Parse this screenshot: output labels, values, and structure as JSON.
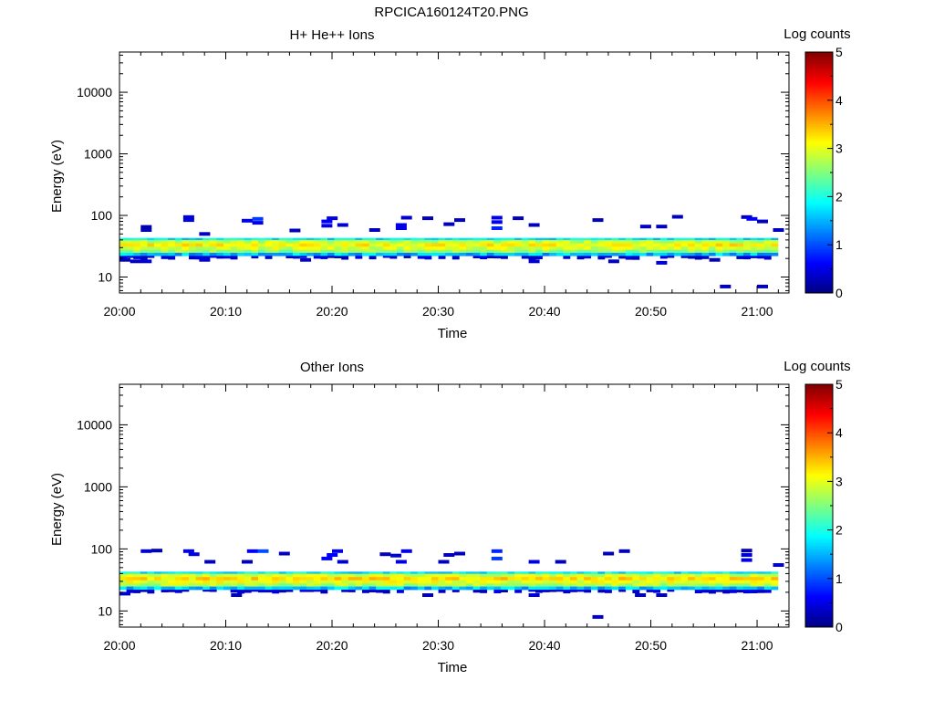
{
  "figure": {
    "title": "RPCICA160124T20.PNG"
  },
  "chart_data": [
    {
      "type": "heatmap",
      "title": "H+ He++ Ions",
      "xlabel": "Time",
      "ylabel": "Energy (eV)",
      "x_range": [
        "20:00",
        "21:03"
      ],
      "x_tick_labels": [
        "20:00",
        "20:10",
        "20:20",
        "20:30",
        "20:40",
        "20:50",
        "21:00"
      ],
      "y_scale": "log",
      "y_range": [
        5.5,
        45000
      ],
      "y_tick_labels": [
        "10",
        "100",
        "1000",
        "10000"
      ],
      "colorbar": {
        "label": "Log counts",
        "range": [
          0,
          5
        ],
        "tick_labels": [
          "0",
          "1",
          "2",
          "3",
          "4",
          "5"
        ]
      },
      "band": {
        "center_ev": 31,
        "spread_ev": [
          21,
          42
        ],
        "peak_log_counts": 3.2
      },
      "cells": [
        {
          "t": 0.0,
          "e": 19,
          "v": 0.3
        },
        {
          "t": 1.0,
          "e": 18,
          "v": 0.3
        },
        {
          "t": 2.0,
          "e": 18,
          "v": 0.4
        },
        {
          "t": 2.0,
          "e": 58,
          "v": 0.3
        },
        {
          "t": 2.0,
          "e": 65,
          "v": 0.2
        },
        {
          "t": 6.0,
          "e": 84,
          "v": 0.5
        },
        {
          "t": 6.0,
          "e": 94,
          "v": 0.4
        },
        {
          "t": 7.5,
          "e": 50,
          "v": 0.3
        },
        {
          "t": 7.5,
          "e": 19,
          "v": 0.4
        },
        {
          "t": 11.5,
          "e": 82,
          "v": 0.5
        },
        {
          "t": 12.5,
          "e": 88,
          "v": 0.9
        },
        {
          "t": 12.5,
          "e": 76,
          "v": 0.5
        },
        {
          "t": 16.0,
          "e": 57,
          "v": 0.3
        },
        {
          "t": 17.0,
          "e": 19,
          "v": 0.4
        },
        {
          "t": 19.0,
          "e": 68,
          "v": 0.5
        },
        {
          "t": 19.0,
          "e": 80,
          "v": 0.6
        },
        {
          "t": 19.5,
          "e": 90,
          "v": 0.5
        },
        {
          "t": 20.5,
          "e": 70,
          "v": 0.4
        },
        {
          "t": 23.5,
          "e": 58,
          "v": 0.3
        },
        {
          "t": 26.0,
          "e": 70,
          "v": 0.5
        },
        {
          "t": 26.0,
          "e": 62,
          "v": 0.5
        },
        {
          "t": 26.5,
          "e": 92,
          "v": 0.4
        },
        {
          "t": 28.5,
          "e": 90,
          "v": 0.3
        },
        {
          "t": 30.5,
          "e": 72,
          "v": 0.3
        },
        {
          "t": 31.5,
          "e": 84,
          "v": 0.3
        },
        {
          "t": 35.0,
          "e": 62,
          "v": 0.8
        },
        {
          "t": 35.0,
          "e": 92,
          "v": 0.5
        },
        {
          "t": 35.0,
          "e": 78,
          "v": 0.6
        },
        {
          "t": 37.0,
          "e": 90,
          "v": 0.3
        },
        {
          "t": 38.5,
          "e": 70,
          "v": 0.3
        },
        {
          "t": 38.5,
          "e": 18,
          "v": 0.4
        },
        {
          "t": 44.5,
          "e": 84,
          "v": 0.3
        },
        {
          "t": 46.0,
          "e": 18,
          "v": 0.3
        },
        {
          "t": 49.0,
          "e": 66,
          "v": 0.3
        },
        {
          "t": 50.5,
          "e": 66,
          "v": 0.3
        },
        {
          "t": 50.5,
          "e": 17,
          "v": 0.4
        },
        {
          "t": 52.0,
          "e": 95,
          "v": 0.3
        },
        {
          "t": 55.5,
          "e": 19,
          "v": 0.3
        },
        {
          "t": 56.5,
          "e": 7,
          "v": 0.3
        },
        {
          "t": 58.5,
          "e": 94,
          "v": 0.3
        },
        {
          "t": 59.0,
          "e": 88,
          "v": 0.6
        },
        {
          "t": 60.0,
          "e": 7,
          "v": 0.3
        },
        {
          "t": 60.0,
          "e": 80,
          "v": 0.3
        },
        {
          "t": 61.5,
          "e": 58,
          "v": 0.3
        }
      ]
    },
    {
      "type": "heatmap",
      "title": "Other Ions",
      "xlabel": "Time",
      "ylabel": "Energy (eV)",
      "x_range": [
        "20:00",
        "21:03"
      ],
      "x_tick_labels": [
        "20:00",
        "20:10",
        "20:20",
        "20:30",
        "20:40",
        "20:50",
        "21:00"
      ],
      "y_scale": "log",
      "y_range": [
        5.5,
        45000
      ],
      "y_tick_labels": [
        "10",
        "100",
        "1000",
        "10000"
      ],
      "colorbar": {
        "label": "Log counts",
        "range": [
          0,
          5
        ],
        "tick_labels": [
          "0",
          "1",
          "2",
          "3",
          "4",
          "5"
        ]
      },
      "band": {
        "center_ev": 31,
        "spread_ev": [
          21,
          42
        ],
        "peak_log_counts": 3.3
      },
      "cells": [
        {
          "t": 0.0,
          "e": 19,
          "v": 0.4
        },
        {
          "t": 2.0,
          "e": 92,
          "v": 0.4
        },
        {
          "t": 3.0,
          "e": 94,
          "v": 0.3
        },
        {
          "t": 6.0,
          "e": 92,
          "v": 0.5
        },
        {
          "t": 6.5,
          "e": 82,
          "v": 0.5
        },
        {
          "t": 8.0,
          "e": 62,
          "v": 0.3
        },
        {
          "t": 10.5,
          "e": 18,
          "v": 0.3
        },
        {
          "t": 11.5,
          "e": 62,
          "v": 0.3
        },
        {
          "t": 12.0,
          "e": 92,
          "v": 0.6
        },
        {
          "t": 13.0,
          "e": 92,
          "v": 1.0
        },
        {
          "t": 15.0,
          "e": 84,
          "v": 0.3
        },
        {
          "t": 19.0,
          "e": 70,
          "v": 0.6
        },
        {
          "t": 19.5,
          "e": 80,
          "v": 0.6
        },
        {
          "t": 20.0,
          "e": 92,
          "v": 0.5
        },
        {
          "t": 20.5,
          "e": 62,
          "v": 0.4
        },
        {
          "t": 24.5,
          "e": 82,
          "v": 0.3
        },
        {
          "t": 25.5,
          "e": 78,
          "v": 0.4
        },
        {
          "t": 26.0,
          "e": 62,
          "v": 0.5
        },
        {
          "t": 26.5,
          "e": 92,
          "v": 0.5
        },
        {
          "t": 28.5,
          "e": 18,
          "v": 0.3
        },
        {
          "t": 30.5,
          "e": 80,
          "v": 0.3
        },
        {
          "t": 31.5,
          "e": 84,
          "v": 0.3
        },
        {
          "t": 30.0,
          "e": 62,
          "v": 0.3
        },
        {
          "t": 35.0,
          "e": 70,
          "v": 0.9
        },
        {
          "t": 35.0,
          "e": 92,
          "v": 0.8
        },
        {
          "t": 38.5,
          "e": 62,
          "v": 0.5
        },
        {
          "t": 38.5,
          "e": 18,
          "v": 0.4
        },
        {
          "t": 41.0,
          "e": 62,
          "v": 0.3
        },
        {
          "t": 44.5,
          "e": 8,
          "v": 0.3
        },
        {
          "t": 45.5,
          "e": 84,
          "v": 0.3
        },
        {
          "t": 47.0,
          "e": 92,
          "v": 0.3
        },
        {
          "t": 48.5,
          "e": 18,
          "v": 0.3
        },
        {
          "t": 50.5,
          "e": 18,
          "v": 0.3
        },
        {
          "t": 58.5,
          "e": 94,
          "v": 0.3
        },
        {
          "t": 58.5,
          "e": 80,
          "v": 0.4
        },
        {
          "t": 58.5,
          "e": 66,
          "v": 0.5
        },
        {
          "t": 61.5,
          "e": 55,
          "v": 0.5
        }
      ]
    }
  ]
}
